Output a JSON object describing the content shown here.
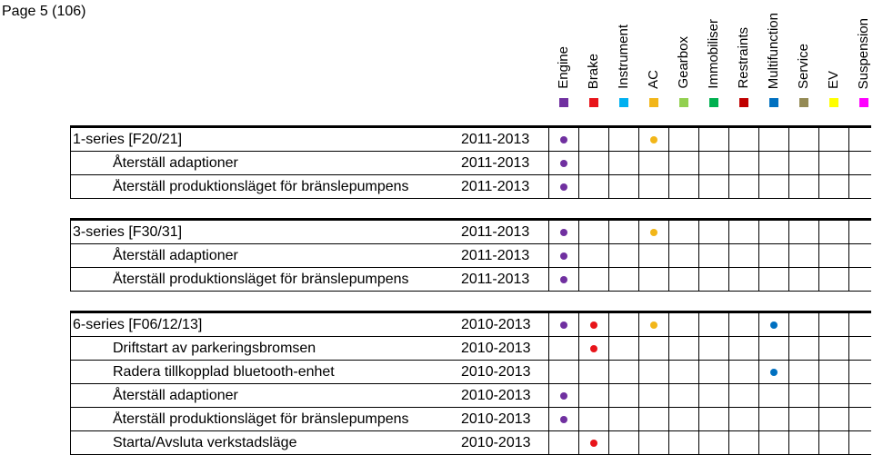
{
  "page": {
    "title": "Page 5 (106)"
  },
  "columns": [
    {
      "label": "Engine",
      "color": "#7030a0"
    },
    {
      "label": "Brake",
      "color": "#e8141a"
    },
    {
      "label": "Instrument",
      "color": "#00b0f0"
    },
    {
      "label": "AC",
      "color": "#f2b619"
    },
    {
      "label": "Gearbox",
      "color": "#92d050"
    },
    {
      "label": "Immobiliser",
      "color": "#00b050"
    },
    {
      "label": "Restraints",
      "color": "#c00000"
    },
    {
      "label": "Multifunction",
      "color": "#0070c0"
    },
    {
      "label": "Service",
      "color": "#948a54"
    },
    {
      "label": "EV",
      "color": "#ffff00"
    },
    {
      "label": "Suspension",
      "color": "#ff00ff"
    }
  ],
  "groups": [
    {
      "rows": [
        {
          "label": "1-series [F20/21]",
          "years": "2011-2013",
          "header": true,
          "dots": [
            0,
            3
          ]
        },
        {
          "label": "Återställ adaptioner",
          "years": "2011-2013",
          "dots": [
            0
          ]
        },
        {
          "label": "Återställ produktionsläget för bränslepumpens",
          "years": "2011-2013",
          "dots": [
            0
          ]
        }
      ]
    },
    {
      "rows": [
        {
          "label": "3-series [F30/31]",
          "years": "2011-2013",
          "header": true,
          "dots": [
            0,
            3
          ]
        },
        {
          "label": "Återställ adaptioner",
          "years": "2011-2013",
          "dots": [
            0
          ]
        },
        {
          "label": "Återställ produktionsläget för bränslepumpens",
          "years": "2011-2013",
          "dots": [
            0
          ]
        }
      ]
    },
    {
      "rows": [
        {
          "label": "6-series [F06/12/13]",
          "years": "2010-2013",
          "header": true,
          "dots": [
            0,
            1,
            3,
            7
          ]
        },
        {
          "label": "Driftstart av parkeringsbromsen",
          "years": "2010-2013",
          "dots": [
            1
          ]
        },
        {
          "label": "Radera tillkopplad bluetooth-enhet",
          "years": "2010-2013",
          "dots": [
            7
          ]
        },
        {
          "label": "Återställ adaptioner",
          "years": "2010-2013",
          "dots": [
            0
          ]
        },
        {
          "label": "Återställ produktionsläget för bränslepumpens",
          "years": "2010-2013",
          "dots": [
            0
          ]
        },
        {
          "label": "Starta/Avsluta verkstadsläge",
          "years": "2010-2013",
          "dots": [
            1
          ]
        }
      ]
    }
  ]
}
